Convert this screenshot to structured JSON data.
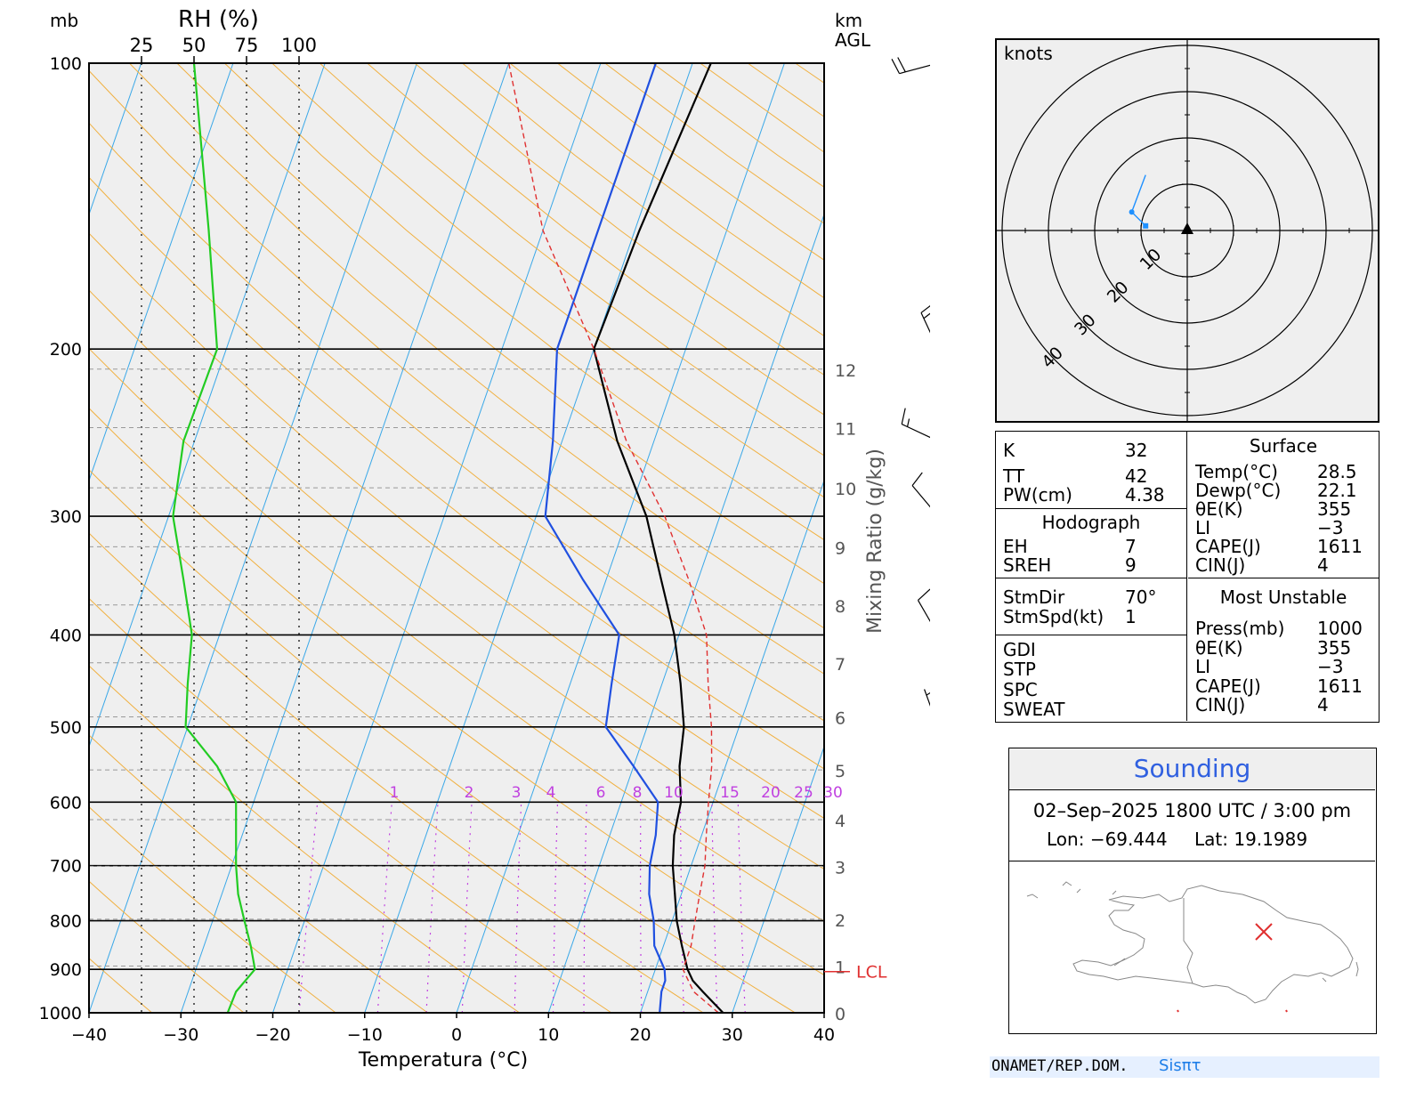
{
  "diagram": {
    "left_header": "mb",
    "rh_header": "RH (%)",
    "rh_ticks": [
      "25",
      "50",
      "75",
      "100"
    ],
    "km_header_1": "km",
    "km_header_2": "AGL",
    "pressure_labels": [
      "100",
      "200",
      "300",
      "400",
      "500",
      "600",
      "700",
      "800",
      "900",
      "1000"
    ],
    "temp_labels": [
      "−40",
      "−30",
      "−20",
      "−10",
      "0",
      "10",
      "20",
      "30",
      "40"
    ],
    "xlabel": "Temperatura (°C)",
    "right_label": "Mixing Ratio (g/kg)",
    "height_labels": [
      "0",
      "1",
      "2",
      "3",
      "4",
      "5",
      "6",
      "7",
      "8",
      "9",
      "10",
      "11",
      "12"
    ],
    "mixing_labels": [
      "1",
      "2",
      "3",
      "4",
      "6",
      "8",
      "10",
      "15",
      "20",
      "25",
      "30"
    ],
    "lcl_label": "LCL"
  },
  "chart_data": {
    "type": "line",
    "title": "",
    "xlabel": "Temperatura (°C)",
    "ylabel": "mb",
    "xlim": [
      -40,
      40
    ],
    "ylim": [
      1000,
      100
    ],
    "y_scale": "log",
    "series": [
      {
        "name": "temperature",
        "color": "#000000",
        "points": [
          [
            1000,
            29
          ],
          [
            950,
            26
          ],
          [
            925,
            24.5
          ],
          [
            900,
            23.5
          ],
          [
            850,
            22
          ],
          [
            800,
            20.5
          ],
          [
            750,
            19.3
          ],
          [
            700,
            18
          ],
          [
            650,
            17
          ],
          [
            600,
            16.5
          ],
          [
            550,
            15
          ],
          [
            500,
            14
          ],
          [
            450,
            12
          ],
          [
            400,
            9.5
          ],
          [
            350,
            6
          ],
          [
            300,
            2
          ],
          [
            250,
            -4
          ],
          [
            200,
            -10
          ],
          [
            150,
            -9.5
          ],
          [
            100,
            -8
          ]
        ]
      },
      {
        "name": "dewpoint",
        "color": "#2050e0",
        "points": [
          [
            1000,
            22.1
          ],
          [
            950,
            21.5
          ],
          [
            925,
            21.5
          ],
          [
            900,
            21
          ],
          [
            850,
            19
          ],
          [
            800,
            18
          ],
          [
            750,
            16.5
          ],
          [
            700,
            15.5
          ],
          [
            650,
            15
          ],
          [
            600,
            14
          ],
          [
            550,
            10
          ],
          [
            500,
            5.5
          ],
          [
            450,
            4.5
          ],
          [
            400,
            3.5
          ],
          [
            350,
            -2.5
          ],
          [
            300,
            -9
          ],
          [
            250,
            -11
          ],
          [
            200,
            -14
          ],
          [
            150,
            -14
          ],
          [
            100,
            -14
          ]
        ]
      },
      {
        "name": "parcel",
        "color": "#e03030",
        "dashed": true,
        "points": [
          [
            1000,
            28.5
          ],
          [
            950,
            25
          ],
          [
            900,
            23
          ],
          [
            850,
            23
          ],
          [
            800,
            22.5
          ],
          [
            750,
            22
          ],
          [
            700,
            21.5
          ],
          [
            650,
            20.5
          ],
          [
            600,
            19.5
          ],
          [
            550,
            18.5
          ],
          [
            500,
            17
          ],
          [
            450,
            15
          ],
          [
            400,
            13
          ],
          [
            350,
            9
          ],
          [
            300,
            4
          ],
          [
            250,
            -3
          ],
          [
            200,
            -10
          ],
          [
            150,
            -20
          ],
          [
            100,
            -30
          ]
        ]
      },
      {
        "name": "rh",
        "color": "#22cc22",
        "points": [
          [
            1000,
            66
          ],
          [
            950,
            70
          ],
          [
            900,
            79
          ],
          [
            850,
            77
          ],
          [
            800,
            74
          ],
          [
            750,
            71
          ],
          [
            700,
            70
          ],
          [
            650,
            70
          ],
          [
            600,
            70
          ],
          [
            550,
            61
          ],
          [
            500,
            46
          ],
          [
            450,
            47
          ],
          [
            400,
            49
          ],
          [
            350,
            45
          ],
          [
            300,
            40
          ],
          [
            250,
            45
          ],
          [
            200,
            61
          ],
          [
            150,
            57
          ],
          [
            100,
            50
          ]
        ]
      }
    ],
    "mixing_ratio_lines": [
      1,
      2,
      3,
      4,
      6,
      8,
      10,
      15,
      20,
      25,
      30
    ],
    "km_agl": [
      {
        "km": 0,
        "p": 1000
      },
      {
        "km": 1,
        "p": 893
      },
      {
        "km": 2,
        "p": 797
      },
      {
        "km": 3,
        "p": 701
      },
      {
        "km": 4,
        "p": 626
      },
      {
        "km": 5,
        "p": 555
      },
      {
        "km": 6,
        "p": 488
      },
      {
        "km": 7,
        "p": 428
      },
      {
        "km": 8,
        "p": 372
      },
      {
        "km": 9,
        "p": 323
      },
      {
        "km": 10,
        "p": 280
      },
      {
        "km": 11,
        "p": 242
      },
      {
        "km": 12,
        "p": 210
      }
    ],
    "lcl_pressure": 905,
    "wind_barbs": [
      {
        "p": 100,
        "dir": 255,
        "kt": 20
      },
      {
        "p": 200,
        "dir": 335,
        "kt": 15
      },
      {
        "p": 250,
        "dir": 295,
        "kt": 15
      },
      {
        "p": 300,
        "dir": 320,
        "kt": 10
      },
      {
        "p": 400,
        "dir": 330,
        "kt": 10
      },
      {
        "p": 500,
        "dir": 340,
        "kt": 5
      },
      {
        "p": 600,
        "dir": 10,
        "kt": 5
      },
      {
        "p": 700,
        "dir": 85,
        "kt": 5
      },
      {
        "p": 850,
        "dir": 135,
        "kt": 10
      },
      {
        "p": 900,
        "dir": 130,
        "kt": 15
      },
      {
        "p": 925,
        "dir": 125,
        "kt": 15
      },
      {
        "p": 950,
        "dir": 120,
        "kt": 15
      },
      {
        "p": 975,
        "dir": 115,
        "kt": 15
      },
      {
        "p": 1000,
        "dir": 110,
        "kt": 10
      }
    ]
  },
  "hodograph": {
    "units": "knots",
    "ring_labels": [
      "10",
      "20",
      "30",
      "40"
    ],
    "points": [
      [
        -9,
        1
      ],
      [
        -12,
        4
      ],
      [
        -9,
        12
      ]
    ]
  },
  "indices": {
    "k_label": "K",
    "k": "32",
    "tt_label": "TT",
    "tt": "42",
    "pw_label": "PW(cm)",
    "pw": "4.38",
    "hodo_header": "Hodograph",
    "eh_label": "EH",
    "eh": "7",
    "sreh_label": "SREH",
    "sreh": "9",
    "stmdir_label": "StmDir",
    "stmdir": "70°",
    "stmspd_label": "StmSpd(kt)",
    "stmspd": "1",
    "gdi_label": "GDI",
    "stp_label": "STP",
    "spc_label": "SPC",
    "sweat_label": "SWEAT"
  },
  "surface": {
    "header": "Surface",
    "temp_label": "Temp(°C)",
    "temp": "28.5",
    "dewp_label": "Dewp(°C)",
    "dewp": "22.1",
    "theta_label": "θE(K)",
    "theta": "355",
    "li_label": "LI",
    "li": "−3",
    "cape_label": "CAPE(J)",
    "cape": "1611",
    "cin_label": "CIN(J)",
    "cin": "4"
  },
  "most_unstable": {
    "header": "Most Unstable",
    "press_label": "Press(mb)",
    "press": "1000",
    "theta_label": "θE(K)",
    "theta": "355",
    "li_label": "LI",
    "li": "−3",
    "cape_label": "CAPE(J)",
    "cape": "1611",
    "cin_label": "CIN(J)",
    "cin": "4"
  },
  "sounding": {
    "title": "Sounding",
    "datetime": "02–Sep–2025 1800 UTC / 3:00 pm",
    "lon_label": "Lon:",
    "lon": "−69.444",
    "lat_label": "Lat:",
    "lat": "19.1989"
  },
  "footer": {
    "source": "ONAMET/REP.DOM.",
    "brand": "Sisπτ"
  },
  "colors": {
    "temperature": "#000000",
    "dewpoint": "#2050e0",
    "parcel": "#e03030",
    "rh": "#22cc22",
    "isotherm": "#3aa8e8",
    "adiabat": "#f0b040",
    "mixing": "#c040e0",
    "plot_bg": "#efefef",
    "hodo_trace": "#1e90ff",
    "title_blue": "#3060e0",
    "footer_bg": "#e6f0ff"
  }
}
